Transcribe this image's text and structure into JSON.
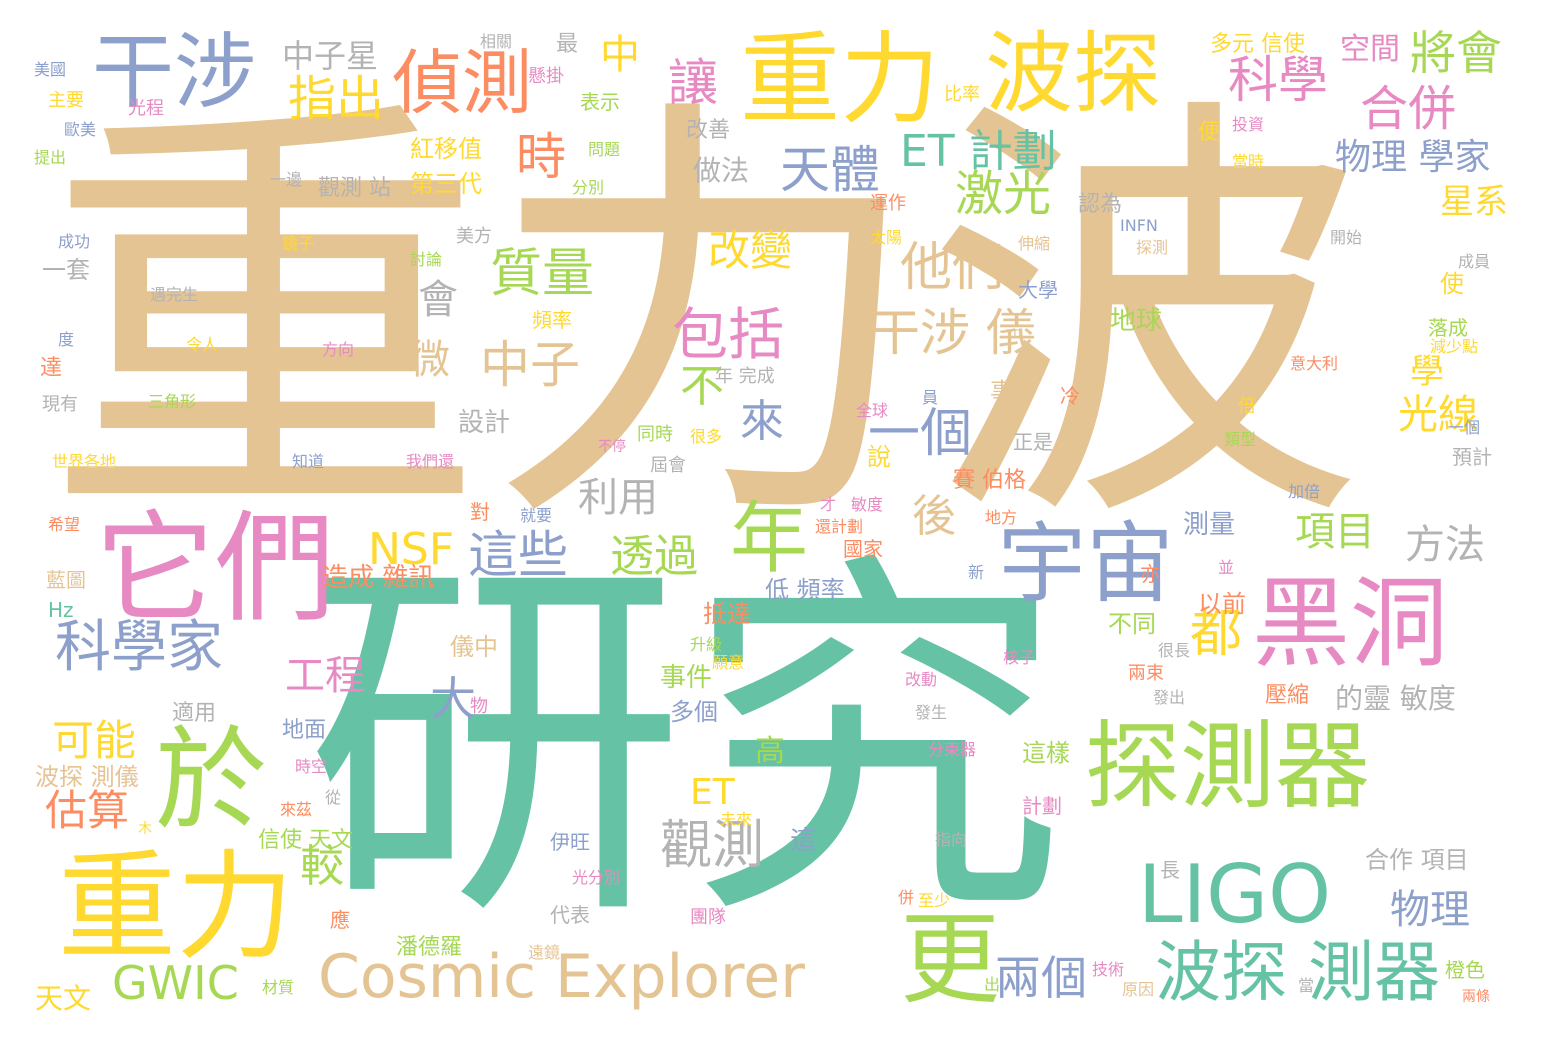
{
  "palette": {
    "tan": "#e5c494",
    "teal": "#66c2a5",
    "green": "#a6d854",
    "yellow": "#ffd92f",
    "blue": "#8da0cb",
    "pink": "#e78ac3",
    "orange": "#fc8d62",
    "grey": "#b3b3b3"
  },
  "words": [
    "重力波",
    "研究",
    "重力",
    "波探",
    "干涉",
    "偵測",
    "指出",
    "中子星",
    "中",
    "讓",
    "科學",
    "將會",
    "合併",
    "空間",
    "它們",
    "於",
    "年",
    "宇宙",
    "黑洞",
    "探測器",
    "重力",
    "更",
    "LIGO",
    "波探 測器",
    "Cosmic Explorer",
    "GWIC",
    "科學家",
    "天體",
    "ET 計劃",
    "激光",
    "他們",
    "質量",
    "改變",
    "包括",
    "干涉 儀",
    "一個",
    "這些",
    "利用",
    "透過",
    "NSF",
    "觀測",
    "可能",
    "估算",
    "較",
    "兩個",
    "物理",
    "物理 學家",
    "時",
    "星系",
    "後",
    "項目",
    "方法",
    "光線",
    "大",
    "工程",
    "中子",
    "微",
    "會",
    "都",
    "來",
    "不",
    "學",
    "ET",
    "事件",
    "多個",
    "高",
    "地面",
    "適用",
    "波探 測儀",
    "天文",
    "信使 天文",
    "儀中",
    "低 頻率",
    "抵達",
    "造成 雜訊",
    "測量",
    "不同",
    "以前",
    "壓縮",
    "的靈 敏度",
    "合作 項目",
    "代表",
    "潘德羅",
    "伊旺",
    "應",
    "這",
    "這樣",
    "計劃",
    "長",
    "兩束",
    "發出",
    "物",
    "紅移值",
    "第三代",
    "觀測 站",
    "一套",
    "做法",
    "運作",
    "認為",
    "使",
    "落成",
    "倍",
    "預計",
    "加倍",
    "正是",
    "事",
    "冷",
    "說",
    "賽 伯格",
    "同時",
    "全球",
    "不停",
    "屆會",
    "設計",
    "對",
    "就要",
    "國家",
    "亦",
    "年 完成",
    "頻率",
    "大學",
    "地球",
    "改善",
    "便",
    "表示",
    "主要",
    "提出",
    "成功",
    "美國",
    "最",
    "相關",
    "多元 信使",
    "比率",
    "投資",
    "當時",
    "問題",
    "分別",
    "懸掛",
    "光程",
    "歐美",
    "美方",
    "鏡子",
    "討論",
    "遇完生",
    "令人",
    "方向",
    "三角形",
    "知道",
    "我們還",
    "希望",
    "藍圖",
    "Hz",
    "太陽",
    "伸縮",
    "INFN",
    "探測",
    "開始",
    "成員",
    "意大利",
    "減少點",
    "類型",
    "很多",
    "員",
    "元",
    "才",
    "敏度",
    "還計劃",
    "地方",
    "新",
    "並",
    "升級",
    "願意",
    "很長",
    "核子",
    "改動",
    "發生",
    "分束器",
    "時空",
    "從",
    "來茲",
    "未來",
    "指向",
    "光分別",
    "團隊",
    "至少",
    "遠鏡",
    "材質",
    "出",
    "技術",
    "原因",
    "當",
    "橙色",
    "兩條",
    "併",
    "現有",
    "達",
    "度",
    "世界各地",
    "木",
    "一邊",
    "一個"
  ]
}
